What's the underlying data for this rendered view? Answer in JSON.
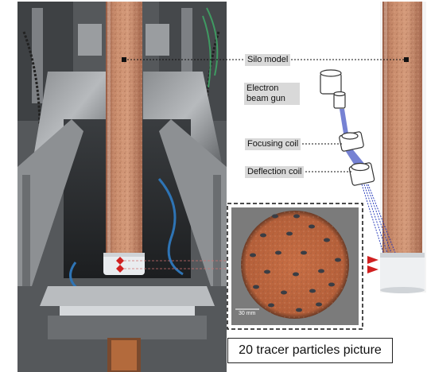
{
  "labels": {
    "silo_model": "Silo model",
    "electron_gun": "Electron beam gun",
    "focusing_coil": "Focusing coil",
    "deflection_coil": "Deflection coil",
    "caption": "20 tracer particles picture",
    "scale": "30 mm"
  },
  "colors": {
    "granular": "#c08060",
    "frame": "#6f7275",
    "beam": "#1a2fb5",
    "marker": "#d02020"
  }
}
